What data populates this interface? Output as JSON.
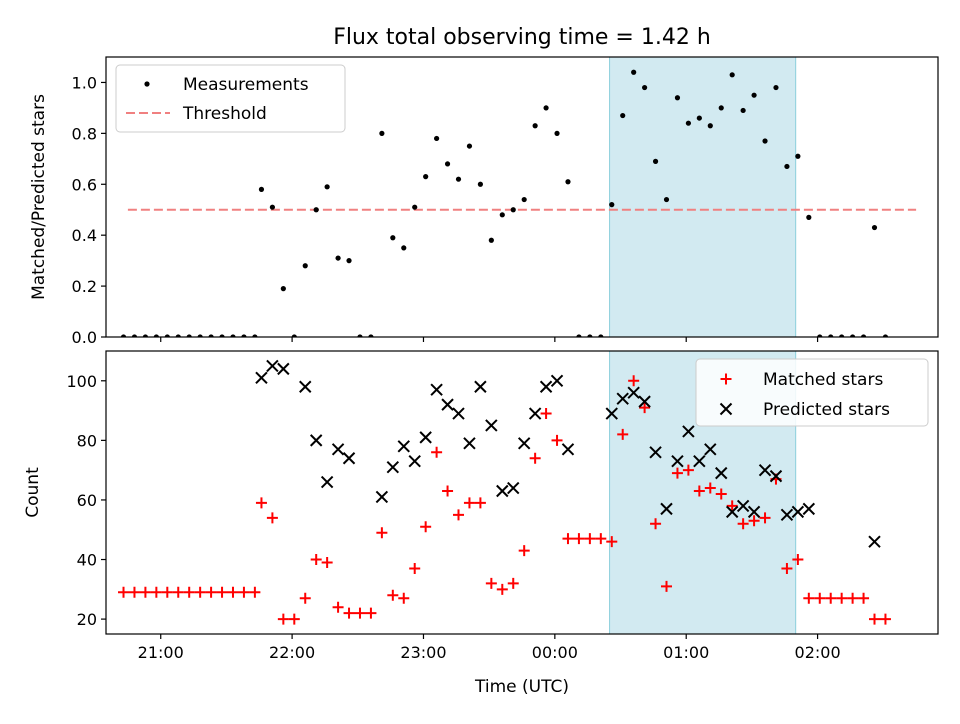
{
  "figure": {
    "title": "Flux total observing time = 1.42 h",
    "xlabel": "Time (UTC)"
  },
  "chart_data": [
    {
      "type": "scatter",
      "name": "ratio-panel",
      "ylabel": "Matched/Predicted stars",
      "xlim": [
        "20:35",
        "02:55"
      ],
      "ylim": [
        0,
        1.1
      ],
      "yticks": [
        0,
        0.2,
        0.4,
        0.6,
        0.8,
        1.0
      ],
      "ytick_labels": [
        "0.0",
        "0.2",
        "0.4",
        "0.6",
        "0.8",
        "1.0"
      ],
      "legend": {
        "position": "top-left",
        "entries": [
          "Measurements",
          "Threshold"
        ]
      },
      "highlight": {
        "x_start": "00:25",
        "x_end": "01:50",
        "color": "#add8e6"
      },
      "threshold": {
        "name": "Threshold",
        "value": 0.5,
        "x_start": "20:45",
        "x_end": "02:45",
        "color": "#f08080"
      },
      "series": [
        {
          "name": "Measurements",
          "color": "#000000",
          "points": [
            [
              "20:43",
              0.0
            ],
            [
              "20:48",
              0.0
            ],
            [
              "20:53",
              0.0
            ],
            [
              "20:58",
              0.0
            ],
            [
              "21:03",
              0.0
            ],
            [
              "21:08",
              0.0
            ],
            [
              "21:13",
              0.0
            ],
            [
              "21:18",
              0.0
            ],
            [
              "21:23",
              0.0
            ],
            [
              "21:28",
              0.0
            ],
            [
              "21:33",
              0.0
            ],
            [
              "21:38",
              0.0
            ],
            [
              "21:43",
              0.0
            ],
            [
              "21:46",
              0.58
            ],
            [
              "21:51",
              0.51
            ],
            [
              "21:56",
              0.19
            ],
            [
              "22:01",
              0.0
            ],
            [
              "22:06",
              0.28
            ],
            [
              "22:11",
              0.5
            ],
            [
              "22:16",
              0.59
            ],
            [
              "22:21",
              0.31
            ],
            [
              "22:26",
              0.3
            ],
            [
              "22:31",
              0.0
            ],
            [
              "22:36",
              0.0
            ],
            [
              "22:41",
              0.8
            ],
            [
              "22:46",
              0.39
            ],
            [
              "22:51",
              0.35
            ],
            [
              "22:56",
              0.51
            ],
            [
              "23:01",
              0.63
            ],
            [
              "23:06",
              0.78
            ],
            [
              "23:11",
              0.68
            ],
            [
              "23:16",
              0.62
            ],
            [
              "23:21",
              0.75
            ],
            [
              "23:26",
              0.6
            ],
            [
              "23:31",
              0.38
            ],
            [
              "23:36",
              0.48
            ],
            [
              "23:41",
              0.5
            ],
            [
              "23:46",
              0.54
            ],
            [
              "23:51",
              0.83
            ],
            [
              "23:56",
              0.9
            ],
            [
              "00:01",
              0.8
            ],
            [
              "00:06",
              0.61
            ],
            [
              "00:11",
              0.0
            ],
            [
              "00:16",
              0.0
            ],
            [
              "00:21",
              0.0
            ],
            [
              "00:26",
              0.52
            ],
            [
              "00:31",
              0.87
            ],
            [
              "00:36",
              1.04
            ],
            [
              "00:41",
              0.98
            ],
            [
              "00:46",
              0.69
            ],
            [
              "00:51",
              0.54
            ],
            [
              "00:56",
              0.94
            ],
            [
              "01:01",
              0.84
            ],
            [
              "01:06",
              0.86
            ],
            [
              "01:11",
              0.83
            ],
            [
              "01:16",
              0.9
            ],
            [
              "01:21",
              1.03
            ],
            [
              "01:26",
              0.89
            ],
            [
              "01:31",
              0.95
            ],
            [
              "01:36",
              0.77
            ],
            [
              "01:41",
              0.98
            ],
            [
              "01:46",
              0.67
            ],
            [
              "01:51",
              0.71
            ],
            [
              "01:56",
              0.47
            ],
            [
              "02:01",
              0.0
            ],
            [
              "02:06",
              0.0
            ],
            [
              "02:11",
              0.0
            ],
            [
              "02:16",
              0.0
            ],
            [
              "02:21",
              0.0
            ],
            [
              "02:26",
              0.43
            ],
            [
              "02:31",
              0.0
            ]
          ]
        }
      ]
    },
    {
      "type": "scatter",
      "name": "count-panel",
      "ylabel": "Count",
      "xlim": [
        "20:35",
        "02:55"
      ],
      "ylim": [
        15,
        110
      ],
      "yticks": [
        20,
        40,
        60,
        80,
        100
      ],
      "ytick_labels": [
        "20",
        "40",
        "60",
        "80",
        "100"
      ],
      "xticks": [
        "21:00",
        "22:00",
        "23:00",
        "00:00",
        "01:00",
        "02:00"
      ],
      "xtick_labels": [
        "21:00",
        "22:00",
        "23:00",
        "00:00",
        "01:00",
        "02:00"
      ],
      "legend": {
        "position": "top-right",
        "entries": [
          "Matched stars",
          "Predicted stars"
        ]
      },
      "highlight": {
        "x_start": "00:25",
        "x_end": "01:50",
        "color": "#add8e6"
      },
      "series": [
        {
          "name": "Matched stars",
          "marker": "plus",
          "color": "#ff0000",
          "points": [
            [
              "20:43",
              29
            ],
            [
              "20:48",
              29
            ],
            [
              "20:53",
              29
            ],
            [
              "20:58",
              29
            ],
            [
              "21:03",
              29
            ],
            [
              "21:08",
              29
            ],
            [
              "21:13",
              29
            ],
            [
              "21:18",
              29
            ],
            [
              "21:23",
              29
            ],
            [
              "21:28",
              29
            ],
            [
              "21:33",
              29
            ],
            [
              "21:38",
              29
            ],
            [
              "21:43",
              29
            ],
            [
              "21:46",
              59
            ],
            [
              "21:51",
              54
            ],
            [
              "21:56",
              20
            ],
            [
              "22:01",
              20
            ],
            [
              "22:06",
              27
            ],
            [
              "22:11",
              40
            ],
            [
              "22:16",
              39
            ],
            [
              "22:21",
              24
            ],
            [
              "22:26",
              22
            ],
            [
              "22:31",
              22
            ],
            [
              "22:36",
              22
            ],
            [
              "22:41",
              49
            ],
            [
              "22:46",
              28
            ],
            [
              "22:51",
              27
            ],
            [
              "22:56",
              37
            ],
            [
              "23:01",
              51
            ],
            [
              "23:06",
              76
            ],
            [
              "23:11",
              63
            ],
            [
              "23:16",
              55
            ],
            [
              "23:21",
              59
            ],
            [
              "23:26",
              59
            ],
            [
              "23:31",
              32
            ],
            [
              "23:36",
              30
            ],
            [
              "23:41",
              32
            ],
            [
              "23:46",
              43
            ],
            [
              "23:51",
              74
            ],
            [
              "23:56",
              89
            ],
            [
              "00:01",
              80
            ],
            [
              "00:06",
              47
            ],
            [
              "00:11",
              47
            ],
            [
              "00:16",
              47
            ],
            [
              "00:21",
              47
            ],
            [
              "00:26",
              46
            ],
            [
              "00:31",
              82
            ],
            [
              "00:36",
              100
            ],
            [
              "00:41",
              91
            ],
            [
              "00:46",
              52
            ],
            [
              "00:51",
              31
            ],
            [
              "00:56",
              69
            ],
            [
              "01:01",
              70
            ],
            [
              "01:06",
              63
            ],
            [
              "01:11",
              64
            ],
            [
              "01:16",
              62
            ],
            [
              "01:21",
              58
            ],
            [
              "01:26",
              52
            ],
            [
              "01:31",
              53
            ],
            [
              "01:36",
              54
            ],
            [
              "01:41",
              67
            ],
            [
              "01:46",
              37
            ],
            [
              "01:51",
              40
            ],
            [
              "01:56",
              27
            ],
            [
              "02:01",
              27
            ],
            [
              "02:06",
              27
            ],
            [
              "02:11",
              27
            ],
            [
              "02:16",
              27
            ],
            [
              "02:21",
              27
            ],
            [
              "02:26",
              20
            ],
            [
              "02:31",
              20
            ]
          ]
        },
        {
          "name": "Predicted stars",
          "marker": "x",
          "color": "#000000",
          "points": [
            [
              "21:46",
              101
            ],
            [
              "21:51",
              105
            ],
            [
              "21:56",
              104
            ],
            [
              "22:06",
              98
            ],
            [
              "22:11",
              80
            ],
            [
              "22:16",
              66
            ],
            [
              "22:21",
              77
            ],
            [
              "22:26",
              74
            ],
            [
              "22:41",
              61
            ],
            [
              "22:46",
              71
            ],
            [
              "22:51",
              78
            ],
            [
              "22:56",
              73
            ],
            [
              "23:01",
              81
            ],
            [
              "23:06",
              97
            ],
            [
              "23:11",
              92
            ],
            [
              "23:16",
              89
            ],
            [
              "23:21",
              79
            ],
            [
              "23:26",
              98
            ],
            [
              "23:31",
              85
            ],
            [
              "23:36",
              63
            ],
            [
              "23:41",
              64
            ],
            [
              "23:46",
              79
            ],
            [
              "23:51",
              89
            ],
            [
              "23:56",
              98
            ],
            [
              "00:01",
              100
            ],
            [
              "00:06",
              77
            ],
            [
              "00:26",
              89
            ],
            [
              "00:31",
              94
            ],
            [
              "00:36",
              96
            ],
            [
              "00:41",
              93
            ],
            [
              "00:46",
              76
            ],
            [
              "00:51",
              57
            ],
            [
              "00:56",
              73
            ],
            [
              "01:01",
              83
            ],
            [
              "01:06",
              73
            ],
            [
              "01:11",
              77
            ],
            [
              "01:16",
              69
            ],
            [
              "01:21",
              56
            ],
            [
              "01:26",
              58
            ],
            [
              "01:31",
              56
            ],
            [
              "01:36",
              70
            ],
            [
              "01:41",
              68
            ],
            [
              "01:46",
              55
            ],
            [
              "01:51",
              56
            ],
            [
              "01:56",
              57
            ],
            [
              "02:26",
              46
            ]
          ]
        }
      ]
    }
  ]
}
